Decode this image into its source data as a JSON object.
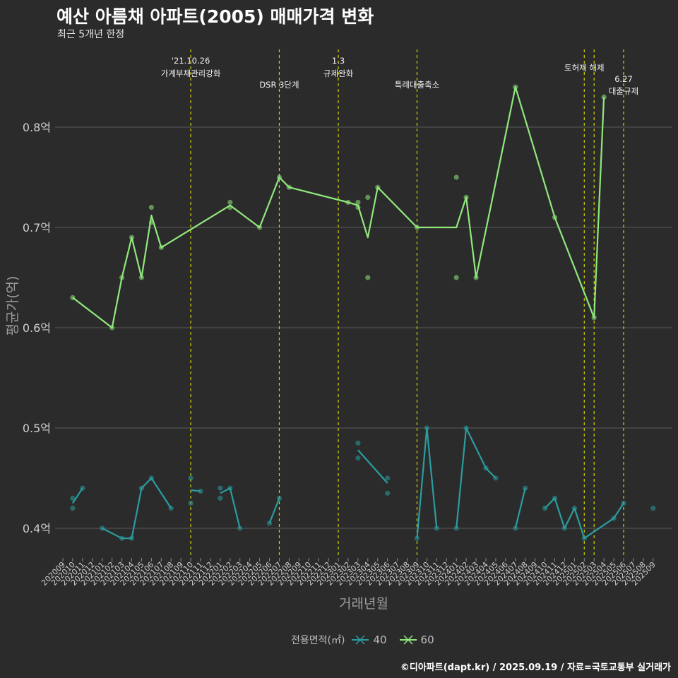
{
  "title": "예산 아름채 아파트(2005) 매매가격 변화",
  "subtitle": "최근 5개년 한정",
  "caption": "©디아파트(dapt.kr) / 2025.09.19 / 자료=국토교통부 실거래가",
  "legend": {
    "title": "전용면적(㎡)",
    "items": [
      {
        "label": "40",
        "color": "#2a9d9f"
      },
      {
        "label": "60",
        "color": "#90e87c"
      }
    ]
  },
  "chart_data": {
    "type": "line",
    "xlabel": "거래년월",
    "ylabel": "평균가(억)",
    "ylim": [
      0.37,
      0.87
    ],
    "y_ticks": [
      0.4,
      0.5,
      0.6,
      0.7,
      0.8
    ],
    "y_tick_labels": [
      "0.4억",
      "0.5억",
      "0.6억",
      "0.7억",
      "0.8억"
    ],
    "x_categories": [
      "202009",
      "202010",
      "202011",
      "202012",
      "202101",
      "202102",
      "202103",
      "202104",
      "202105",
      "202106",
      "202107",
      "202108",
      "202109",
      "202110",
      "202111",
      "202112",
      "202201",
      "202202",
      "202203",
      "202204",
      "202205",
      "202206",
      "202207",
      "202208",
      "202209",
      "202210",
      "202211",
      "202212",
      "202301",
      "202302",
      "202303",
      "202304",
      "202305",
      "202306",
      "202307",
      "202308",
      "202309",
      "202310",
      "202311",
      "202312",
      "202401",
      "202402",
      "202403",
      "202404",
      "202405",
      "202406",
      "202407",
      "202408",
      "202409",
      "202410",
      "202411",
      "202412",
      "202501",
      "202502",
      "202503",
      "202504",
      "202505",
      "202506",
      "202507",
      "202508",
      "202509"
    ],
    "events": [
      {
        "x": 13.0,
        "lines": [
          "'21.10.26",
          "가계부채관리강화"
        ]
      },
      {
        "x": 22.0,
        "lines": [
          "DSR 3단계"
        ]
      },
      {
        "x": 28.0,
        "lines": [
          "1.3",
          "규제완화"
        ]
      },
      {
        "x": 36.0,
        "lines": [
          "특례대출축소"
        ]
      },
      {
        "x": 53.0,
        "lines": [
          "토허제 해제"
        ]
      },
      {
        "x": 54.0,
        "lines": []
      },
      {
        "x": 57.0,
        "lines": [
          "6.27",
          "대출규제"
        ]
      }
    ],
    "series": [
      {
        "name": "60",
        "color": "#90e87c",
        "line": [
          [
            1,
            0.63
          ],
          [
            5,
            0.6
          ],
          [
            6,
            0.65
          ],
          [
            7,
            0.69
          ],
          [
            8,
            0.65
          ],
          [
            9,
            0.712
          ],
          [
            10,
            0.68
          ],
          [
            17,
            0.722
          ],
          [
            20,
            0.7
          ],
          [
            22,
            0.75
          ],
          [
            23,
            0.74
          ],
          [
            29,
            0.725
          ],
          [
            30,
            0.722
          ],
          [
            31,
            0.69
          ],
          [
            32,
            0.74
          ],
          [
            36,
            0.7
          ],
          [
            40,
            0.7
          ],
          [
            41,
            0.73
          ],
          [
            42,
            0.65
          ],
          [
            46,
            0.84
          ],
          [
            50,
            0.71
          ],
          [
            54,
            0.61
          ],
          [
            55,
            0.83
          ]
        ],
        "points": [
          [
            1,
            0.63
          ],
          [
            5,
            0.6
          ],
          [
            6,
            0.65
          ],
          [
            7,
            0.69
          ],
          [
            8,
            0.65
          ],
          [
            9,
            0.72
          ],
          [
            9,
            0.705
          ],
          [
            10,
            0.68
          ],
          [
            17,
            0.725
          ],
          [
            17,
            0.72
          ],
          [
            20,
            0.7
          ],
          [
            22,
            0.75
          ],
          [
            23,
            0.74
          ],
          [
            29,
            0.725
          ],
          [
            30,
            0.725
          ],
          [
            30,
            0.72
          ],
          [
            31,
            0.73
          ],
          [
            31,
            0.65
          ],
          [
            32,
            0.74
          ],
          [
            36,
            0.7
          ],
          [
            40,
            0.75
          ],
          [
            40,
            0.65
          ],
          [
            41,
            0.73
          ],
          [
            42,
            0.65
          ],
          [
            46,
            0.84
          ],
          [
            50,
            0.71
          ],
          [
            54,
            0.61
          ],
          [
            55,
            0.83
          ]
        ]
      },
      {
        "name": "40",
        "color": "#2a9d9f",
        "segments": [
          [
            [
              1,
              0.425
            ],
            [
              2,
              0.44
            ]
          ],
          [
            [
              4,
              0.4
            ],
            [
              6,
              0.39
            ],
            [
              7,
              0.39
            ],
            [
              8,
              0.44
            ],
            [
              9,
              0.45
            ],
            [
              11,
              0.42
            ]
          ],
          [
            [
              13,
              0.438
            ],
            [
              14,
              0.437
            ]
          ],
          [
            [
              16,
              0.435
            ],
            [
              17,
              0.44
            ],
            [
              18,
              0.4
            ]
          ],
          [
            [
              21,
              0.405
            ],
            [
              22,
              0.43
            ]
          ],
          [
            [
              30,
              0.478
            ],
            [
              33,
              0.445
            ]
          ],
          [
            [
              36,
              0.39
            ],
            [
              37,
              0.5
            ],
            [
              38,
              0.4
            ]
          ],
          [
            [
              40,
              0.4
            ],
            [
              41,
              0.5
            ],
            [
              43,
              0.46
            ],
            [
              44,
              0.45
            ]
          ],
          [
            [
              46,
              0.4
            ],
            [
              47,
              0.44
            ]
          ],
          [
            [
              49,
              0.42
            ],
            [
              50,
              0.43
            ],
            [
              51,
              0.4
            ],
            [
              52,
              0.42
            ],
            [
              53,
              0.39
            ],
            [
              56,
              0.41
            ],
            [
              57,
              0.425
            ]
          ]
        ],
        "points": [
          [
            1,
            0.43
          ],
          [
            1,
            0.42
          ],
          [
            2,
            0.44
          ],
          [
            4,
            0.4
          ],
          [
            6,
            0.39
          ],
          [
            7,
            0.39
          ],
          [
            8,
            0.44
          ],
          [
            9,
            0.45
          ],
          [
            11,
            0.42
          ],
          [
            13,
            0.45
          ],
          [
            13,
            0.425
          ],
          [
            14,
            0.437
          ],
          [
            16,
            0.44
          ],
          [
            16,
            0.43
          ],
          [
            17,
            0.44
          ],
          [
            18,
            0.4
          ],
          [
            21,
            0.405
          ],
          [
            22,
            0.43
          ],
          [
            30,
            0.485
          ],
          [
            30,
            0.47
          ],
          [
            33,
            0.45
          ],
          [
            33,
            0.435
          ],
          [
            36,
            0.39
          ],
          [
            37,
            0.5
          ],
          [
            38,
            0.4
          ],
          [
            40,
            0.4
          ],
          [
            41,
            0.5
          ],
          [
            43,
            0.46
          ],
          [
            44,
            0.45
          ],
          [
            46,
            0.4
          ],
          [
            47,
            0.44
          ],
          [
            49,
            0.42
          ],
          [
            50,
            0.43
          ],
          [
            51,
            0.4
          ],
          [
            52,
            0.42
          ],
          [
            53,
            0.39
          ],
          [
            56,
            0.41
          ],
          [
            57,
            0.425
          ],
          [
            60,
            0.42
          ]
        ]
      }
    ]
  }
}
